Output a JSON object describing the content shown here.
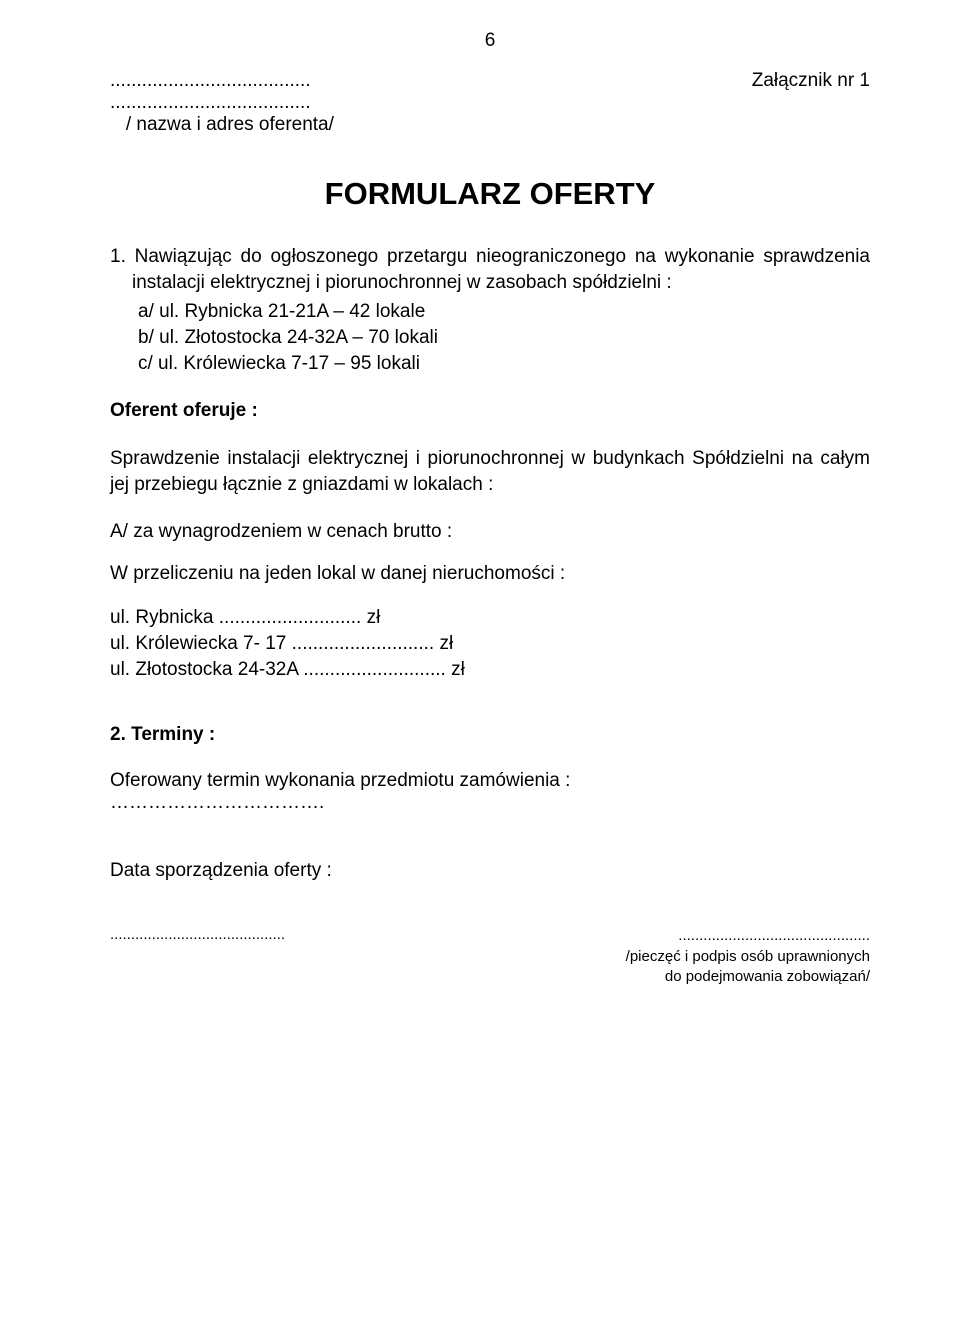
{
  "page_number": "6",
  "header": {
    "dotted_line_1": "......................................",
    "dotted_line_2": "......................................",
    "annex_label": "Załącznik nr 1",
    "offerer_label": "/ nazwa i adres oferenta/"
  },
  "form_title": "FORMULARZ   OFERTY",
  "section1": {
    "intro": "1. Nawiązując do ogłoszonego przetargu nieograniczonego na wykonanie sprawdzenia instalacji elektrycznej i piorunochronnej w zasobach spółdzielni :",
    "items": [
      "a/ ul. Rybnicka 21-21A – 42 lokale",
      "b/ ul. Złotostocka 24-32A  – 70 lokali",
      "c/ ul. Królewiecka 7-17 – 95 lokali"
    ]
  },
  "offerer_offers_label": "Oferent oferuje :",
  "body_paragraph": "Sprawdzenie instalacji elektrycznej i piorunochronnej  w budynkach Spółdzielni na całym jej przebiegu łącznie z gniazdami w lokalach :",
  "pricing": {
    "heading": "A/ za wynagrodzeniem w cenach brutto :",
    "sub_heading": "W przeliczeniu na jeden lokal w danej nieruchomości :",
    "lines": [
      "ul. Rybnicka                                             ........................... zł",
      "ul. Królewiecka 7- 17                                ........................... zł",
      "ul. Złotostocka 24-32A                              ........................... zł"
    ]
  },
  "section2": {
    "title": "2. Terminy :",
    "offered_term": "Oferowany termin wykonania przedmiotu zamówienia :",
    "term_dots": "…………………………….",
    "date_label": "Data sporządzenia oferty :"
  },
  "footer": {
    "left_dots": "..........................................",
    "right_dots": "..............................................",
    "right_text_1": "/pieczęć i podpis osób uprawnionych",
    "right_text_2": "do podejmowania zobowiązań/"
  }
}
